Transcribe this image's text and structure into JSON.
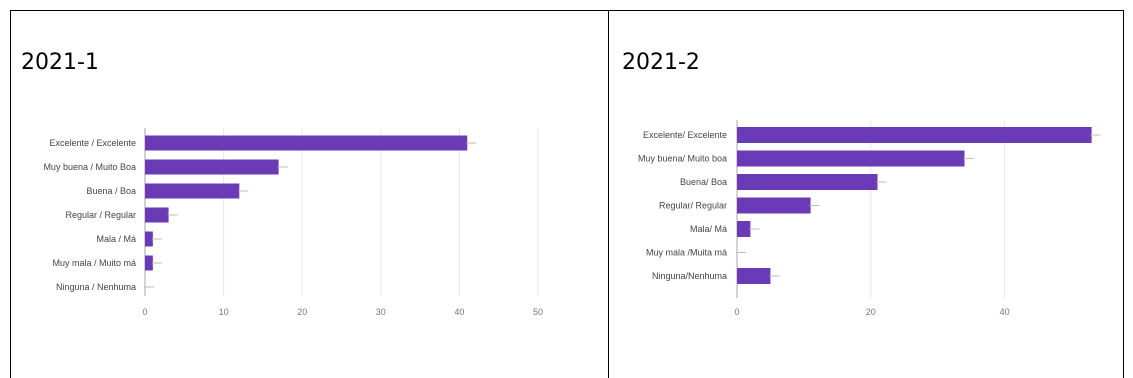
{
  "cells": [
    {
      "title": "2021-1"
    },
    {
      "title": "2021-2"
    }
  ],
  "colors": {
    "bar": "#6a3ab7",
    "grid": "#e6e6e6",
    "axis": "#aaaaaa",
    "errorbar": "#bbbbbb"
  },
  "chart_data": [
    {
      "type": "bar",
      "orientation": "horizontal",
      "title": "2021-1",
      "categories": [
        "Excelente / Excelente",
        "Muy buena / Muito Boa",
        "Buena / Boa",
        "Regular / Regular",
        "Mala / Má",
        "Muy mala / Muito má",
        "Ninguna / Nenhuma"
      ],
      "values": [
        41,
        17,
        12,
        3,
        1,
        1,
        0
      ],
      "xticks": [
        "0",
        "10",
        "20",
        "30",
        "40",
        "50"
      ],
      "xlim": [
        0,
        50
      ],
      "grid": true
    },
    {
      "type": "bar",
      "orientation": "horizontal",
      "title": "2021-2",
      "categories": [
        "Excelente/ Excelente",
        "Muy buena/ Muito boa",
        "Buena/ Boa",
        "Regular/ Regular",
        "Mala/ Má",
        "Muy mala /Muita má",
        "Ninguna/Nenhuma"
      ],
      "values": [
        53,
        34,
        21,
        11,
        2,
        0,
        5
      ],
      "xticks": [
        "0",
        "20",
        "40"
      ],
      "xlim": [
        0,
        55
      ],
      "grid": true
    }
  ]
}
